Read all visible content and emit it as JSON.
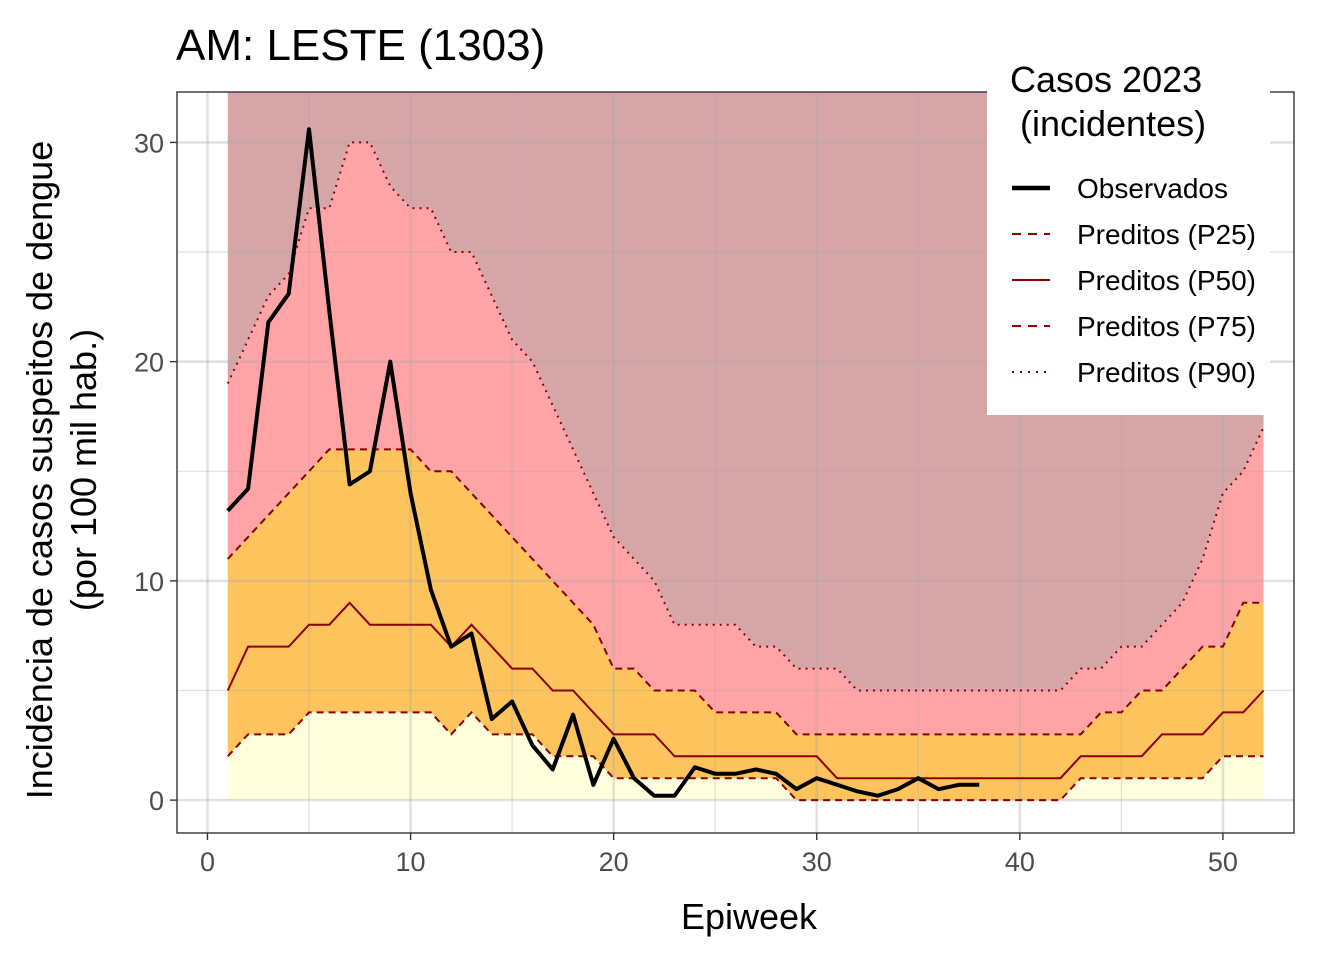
{
  "chart_data": {
    "type": "line",
    "title": "AM: LESTE (1303)",
    "xlabel": "Epiweek",
    "ylabel_lines": [
      "Incidência de casos suspeitos de dengue",
      "(por 100 mil hab.)"
    ],
    "xlim": [
      -1.5,
      53.5
    ],
    "ylim": [
      -1.5,
      32.3
    ],
    "x_ticks": [
      0,
      10,
      20,
      30,
      40,
      50
    ],
    "y_ticks": [
      0,
      10,
      20,
      30
    ],
    "grid": true,
    "legend_placement": "top-right",
    "legend": {
      "title_lines": [
        "Casos 2023",
        " (incidentes)"
      ],
      "items": [
        {
          "label": "Observados",
          "style": "solid-thick",
          "color": "#000000"
        },
        {
          "label": "Preditos (P25)",
          "style": "dashed",
          "color": "#8b0000"
        },
        {
          "label": "Preditos (P50)",
          "style": "solid",
          "color": "#8b0000"
        },
        {
          "label": "Preditos (P75)",
          "style": "dashed",
          "color": "#8b0000"
        },
        {
          "label": "Preditos (P90)",
          "style": "dotted",
          "color": "#8b0000"
        }
      ]
    },
    "band_colors": {
      "below_p25": "#ffffdd",
      "p25_p75": "#fdc35c",
      "p75_p90": "#ffa4a6",
      "above_p90": "#d6a5a7"
    },
    "band_top": 32.3,
    "x": [
      1,
      2,
      3,
      4,
      5,
      6,
      7,
      8,
      9,
      10,
      11,
      12,
      13,
      14,
      15,
      16,
      17,
      18,
      19,
      20,
      21,
      22,
      23,
      24,
      25,
      26,
      27,
      28,
      29,
      30,
      31,
      32,
      33,
      34,
      35,
      36,
      37,
      38,
      39,
      40,
      41,
      42,
      43,
      44,
      45,
      46,
      47,
      48,
      49,
      50,
      51,
      52
    ],
    "series": [
      {
        "name": "Preditos (P25)",
        "values": [
          2,
          3,
          3,
          3,
          4,
          4,
          4,
          4,
          4,
          4,
          4,
          3,
          4,
          3,
          3,
          3,
          2,
          2,
          2,
          1,
          1,
          1,
          1,
          1,
          1,
          1,
          1,
          1,
          0,
          0,
          0,
          0,
          0,
          0,
          0,
          0,
          0,
          0,
          0,
          0,
          0,
          0,
          1,
          1,
          1,
          1,
          1,
          1,
          1,
          2,
          2,
          2
        ]
      },
      {
        "name": "Preditos (P50)",
        "values": [
          5,
          7,
          7,
          7,
          8,
          8,
          9,
          8,
          8,
          8,
          8,
          7,
          8,
          7,
          6,
          6,
          5,
          5,
          4,
          3,
          3,
          3,
          2,
          2,
          2,
          2,
          2,
          2,
          2,
          2,
          1,
          1,
          1,
          1,
          1,
          1,
          1,
          1,
          1,
          1,
          1,
          1,
          2,
          2,
          2,
          2,
          3,
          3,
          3,
          4,
          4,
          5
        ]
      },
      {
        "name": "Preditos (P75)",
        "values": [
          11,
          12,
          13,
          14,
          15,
          16,
          16,
          16,
          16,
          16,
          15,
          15,
          14,
          13,
          12,
          11,
          10,
          9,
          8,
          6,
          6,
          5,
          5,
          5,
          4,
          4,
          4,
          4,
          3,
          3,
          3,
          3,
          3,
          3,
          3,
          3,
          3,
          3,
          3,
          3,
          3,
          3,
          3,
          4,
          4,
          5,
          5,
          6,
          7,
          7,
          9,
          9
        ]
      },
      {
        "name": "Preditos (P90)",
        "values": [
          19,
          21,
          23,
          24,
          27,
          27,
          30,
          30,
          28,
          27,
          27,
          25,
          25,
          23,
          21,
          20,
          18,
          16,
          14,
          12,
          11,
          10,
          8,
          8,
          8,
          8,
          7,
          7,
          6,
          6,
          6,
          5,
          5,
          5,
          5,
          5,
          5,
          5,
          5,
          5,
          5,
          5,
          6,
          6,
          7,
          7,
          8,
          9,
          11,
          14,
          15,
          17
        ]
      },
      {
        "name": "Observados",
        "x": [
          1,
          2,
          3,
          4,
          5,
          6,
          7,
          8,
          9,
          10,
          11,
          12,
          13,
          14,
          15,
          16,
          17,
          18,
          19,
          20,
          21,
          22,
          23,
          24,
          25,
          26,
          27,
          28,
          29,
          30,
          31,
          32,
          33,
          34,
          35,
          36,
          37,
          38
        ],
        "values": [
          13.2,
          14.2,
          21.8,
          23.1,
          30.6,
          22.3,
          14.4,
          15.0,
          20.0,
          14.0,
          9.6,
          7.0,
          7.6,
          3.7,
          4.5,
          2.5,
          1.4,
          3.9,
          0.7,
          2.8,
          1.0,
          0.2,
          0.2,
          1.5,
          1.2,
          1.2,
          1.4,
          1.2,
          0.5,
          1.0,
          0.7,
          0.4,
          0.2,
          0.5,
          1.0,
          0.5,
          0.7,
          0.7
        ]
      }
    ]
  }
}
